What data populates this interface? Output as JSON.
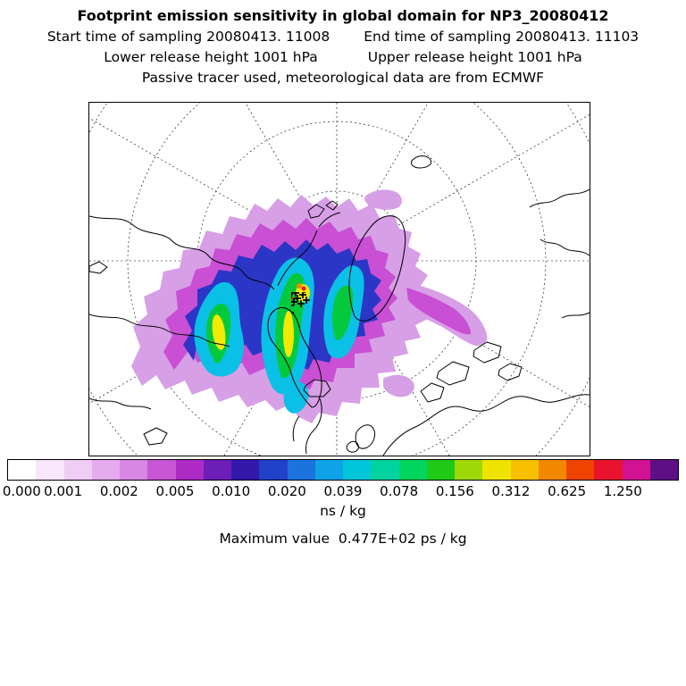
{
  "header": {
    "title": "Footprint emission sensitivity in global domain for NP3_20080412",
    "sampling_start": "Start time of sampling 20080413. 11008",
    "sampling_end": "End time of sampling 20080413. 11103",
    "lower_release": "Lower release height 1001 hPa",
    "upper_release": "Upper release height 1001 hPa",
    "tracer_note": "Passive tracer used, meteorological data are from ECMWF"
  },
  "colorbar": {
    "ticks": [
      "0.000",
      "0.001",
      "0.002",
      "0.005",
      "0.010",
      "0.020",
      "0.039",
      "0.078",
      "0.156",
      "0.312",
      "0.625",
      "1.250"
    ],
    "segments": [
      "#ffffff",
      "#f8e7fa",
      "#f0cdf4",
      "#e5aced",
      "#d887e4",
      "#c857d6",
      "#ad2bc5",
      "#6d1eb6",
      "#3418ac",
      "#2141c9",
      "#1b74de",
      "#0fa2e8",
      "#00c6db",
      "#00d3a0",
      "#00d560",
      "#21c917",
      "#9ed806",
      "#efe400",
      "#f7c000",
      "#f28800",
      "#ee4400",
      "#e9132f",
      "#d01293",
      "#5e0f86"
    ],
    "units": "ns / kg"
  },
  "footer": {
    "max_label": "Maximum value  0.477E+02 ps / kg"
  },
  "chart_data": {
    "type": "heatmap",
    "title": "Footprint emission sensitivity in global domain for NP3_20080412",
    "projection": "north polar stereographic map of Arctic with dashed graticule and coastlines",
    "station_id": "NP3_20080412",
    "sampling_start": "20080413. 11008",
    "sampling_end": "20080413. 11103",
    "lower_release_height": "1001 hPa",
    "upper_release_height": "1001 hPa",
    "tracer": "Passive tracer used, meteorological data are from ECMWF",
    "colorbar_levels": [
      0.0,
      0.001,
      0.002,
      0.005,
      0.01,
      0.02,
      0.039,
      0.078,
      0.156,
      0.312,
      0.625,
      1.25
    ],
    "colorbar_units": "ns / kg",
    "colorbar_colors": [
      "#ffffff",
      "#f8e7fa",
      "#f0cdf4",
      "#e5aced",
      "#d887e4",
      "#c857d6",
      "#ad2bc5",
      "#6d1eb6",
      "#3418ac",
      "#2141c9",
      "#1b74de",
      "#0fa2e8",
      "#00c6db",
      "#00d3a0",
      "#00d560",
      "#21c917",
      "#9ed806",
      "#efe400",
      "#f7c000",
      "#f28800",
      "#ee4400",
      "#e9132f",
      "#d01293",
      "#5e0f86"
    ],
    "max_value": "0.477E+02 ps / kg",
    "legend_position": "bottom",
    "plume_description": "Emission sensitivity plume centered over Barents/Kara Sea sector with yellow/green cores, cyan-blue bands and violet fringes; black release-point marker cluster near plume center",
    "plume_colors": {
      "fringe": "#d79fe6",
      "magenta": "#c94fd4",
      "blue": "#2b36c6",
      "cyan": "#0ac0e6",
      "green": "#05c93d",
      "yellow": "#f2ea00"
    }
  }
}
